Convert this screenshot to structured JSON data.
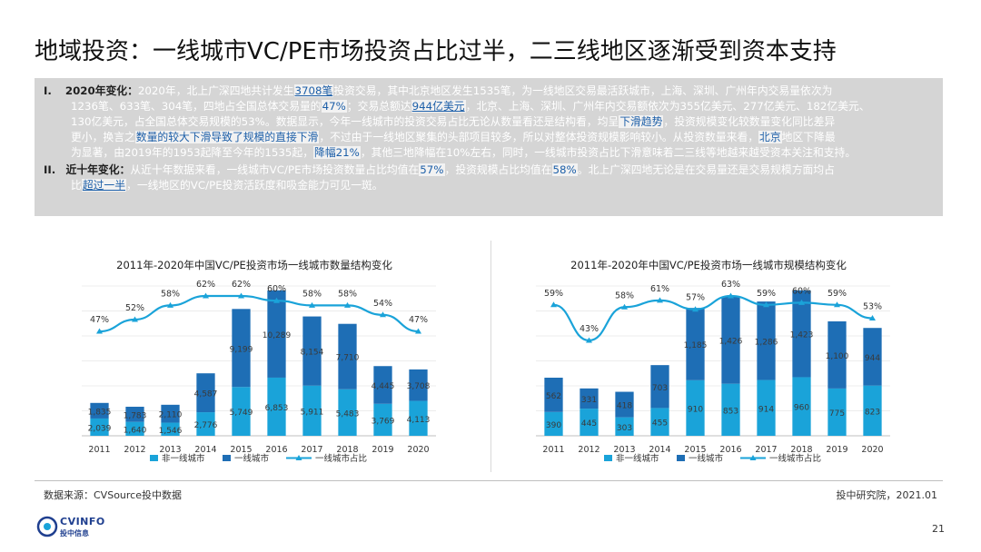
{
  "page": {
    "title": "地域投资：一线城市VC/PE市场投资占比过半，二三线地区逐渐受到资本支持",
    "source": "数据来源：CVSource投中数据",
    "credit": "投中研究院，2021.01",
    "page_number": "21",
    "logo_brand": "CVINFO",
    "logo_sub": "投中信息"
  },
  "summary": {
    "p1": {
      "num": "I.",
      "label": "2020年变化：",
      "l1a": "2020年，北上广深四地共计发生",
      "l1b": "3708笔",
      "l1c": "投资交易，其中北京地区发生1535笔，为一线地区交易最活跃城市，上海、深圳、广州年内交易量依次为",
      "l2a": "1236笔、633笔、304笔，四地占全国总体交易量的",
      "l2b": "47%",
      "l2c": "；交易总额达",
      "l2d": "944亿美元",
      "l2e": "，北京、上海、深圳、广州年内交易额依次为355亿美元、277亿美元、182亿美元、",
      "l3a": "130亿美元，占全国总体交易规模的53%。数据显示，今年一线城市的投资交易占比无论从数量看还是结构看，均呈",
      "l3b": "下滑趋势",
      "l3c": "，投资规模变化较数量变化同比差异",
      "l4a": "更小，换言之",
      "l4b": "数量的较大下滑导致了规模的直接下滑",
      "l4c": "，不过由于一线地区聚集的头部项目较多，所以对整体投资规模影响较小。从投资数量来看，",
      "l4d": "北京",
      "l4e": "地区下降最",
      "l5a": "为显著，由2019年的1953起降至今年的1535起，",
      "l5b": "降幅21%",
      "l5c": "，其他三地降幅在10%左右，同时，一线城市投资占比下滑意味着二三线等地越来越受资本关注和支持。"
    },
    "p2": {
      "num": "II.",
      "label": "近十年变化：",
      "l1a": "从近十年数据来看，一线城市VC/PE市场投资数量占比均值在",
      "l1b": "57%",
      "l1c": "，投资规模占比均值在",
      "l1d": "58%",
      "l1e": "。北上广深四地无论是在交易量还是交易规模方面均占",
      "l2a": "比",
      "l2b": "超过一半",
      "l2c": "，一线地区的VC/PE投资活跃度和吸金能力可见一斑。"
    }
  },
  "chart_data": [
    {
      "type": "bar",
      "stacked": true,
      "title": "2011年-2020年中国VC/PE投资市场一线城市数量结构变化",
      "categories": [
        "2011",
        "2012",
        "2013",
        "2014",
        "2015",
        "2016",
        "2017",
        "2018",
        "2019",
        "2020"
      ],
      "series": [
        {
          "name": "非一线城市",
          "values": [
            2039,
            1640,
            1546,
            2776,
            5749,
            6853,
            5911,
            5483,
            3769,
            4113
          ],
          "color": "#1aa3d9"
        },
        {
          "name": "一线城市",
          "values": [
            1835,
            1783,
            2110,
            4587,
            9199,
            10289,
            8154,
            7710,
            4445,
            3708
          ],
          "color": "#1e6eb5"
        },
        {
          "name": "一线城市占比",
          "type": "line",
          "values": [
            47,
            52,
            58,
            62,
            62,
            60,
            58,
            58,
            54,
            47
          ],
          "labels": [
            "47%",
            "52%",
            "58%",
            "62%",
            "62%",
            "60%",
            "58%",
            "58%",
            "54%",
            "47%"
          ],
          "color": "#1aa3d9"
        }
      ],
      "legend": "bottom"
    },
    {
      "type": "bar",
      "stacked": true,
      "title": "2011年-2020年中国VC/PE投资市场一线城市规模结构变化",
      "categories": [
        "2011",
        "2012",
        "2013",
        "2014",
        "2015",
        "2016",
        "2017",
        "2018",
        "2019",
        "2020"
      ],
      "series": [
        {
          "name": "非一线城市",
          "values": [
            390,
            445,
            303,
            455,
            910,
            853,
            914,
            960,
            775,
            823
          ],
          "color": "#1aa3d9"
        },
        {
          "name": "一线城市",
          "values": [
            562,
            331,
            418,
            703,
            1185,
            1426,
            1286,
            1423,
            1100,
            944
          ],
          "color": "#1e6eb5"
        },
        {
          "name": "一线城市占比",
          "type": "line",
          "values": [
            59,
            43,
            58,
            61,
            57,
            63,
            59,
            60,
            59,
            53
          ],
          "labels": [
            "59%",
            "43%",
            "58%",
            "61%",
            "57%",
            "63%",
            "59%",
            "60%",
            "59%",
            "53%"
          ],
          "color": "#1aa3d9"
        }
      ],
      "legend": "bottom"
    }
  ]
}
